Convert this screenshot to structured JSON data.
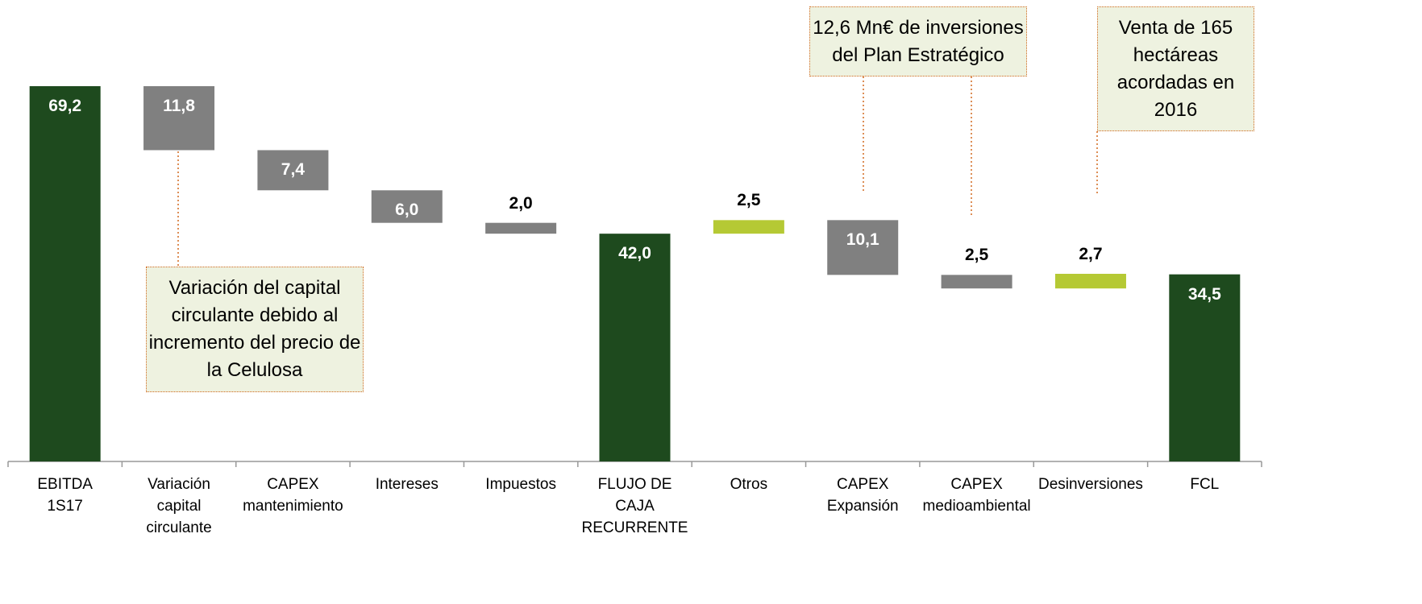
{
  "chart_data": {
    "type": "waterfall",
    "categories": [
      "EBITDA\n1S17",
      "Variación\ncapital\ncirculante",
      "CAPEX\nmantenimiento",
      "Intereses",
      "Impuestos",
      "FLUJO DE\nCAJA\nRECURRENTE",
      "Otros",
      "CAPEX\nExpansión",
      "CAPEX\nmedioambiental",
      "Desinversiones",
      "FCL"
    ],
    "values": [
      69.2,
      11.8,
      7.4,
      6.0,
      2.0,
      42.0,
      2.5,
      10.1,
      2.5,
      2.7,
      34.5
    ],
    "value_labels": [
      "69,2",
      "11,8",
      "7,4",
      "6,0",
      "2,0",
      "42,0",
      "2,5",
      "10,1",
      "2,5",
      "2,7",
      "34,5"
    ],
    "kinds": [
      "total",
      "decrease",
      "decrease",
      "decrease",
      "decrease",
      "total",
      "increase",
      "decrease",
      "decrease",
      "increase",
      "total"
    ],
    "colors": {
      "total": "#1e4a1e",
      "decrease": "#808080",
      "increase": "#b5c934"
    },
    "annotations": [
      "Variación del capital\ncirculante debido al\nincremento del precio de\nla Celulosa",
      "12,6 Mn€ de inversiones\ndel Plan Estratégico",
      "Venta de 165\nhectáreas\nacordadas en\n2016"
    ]
  }
}
